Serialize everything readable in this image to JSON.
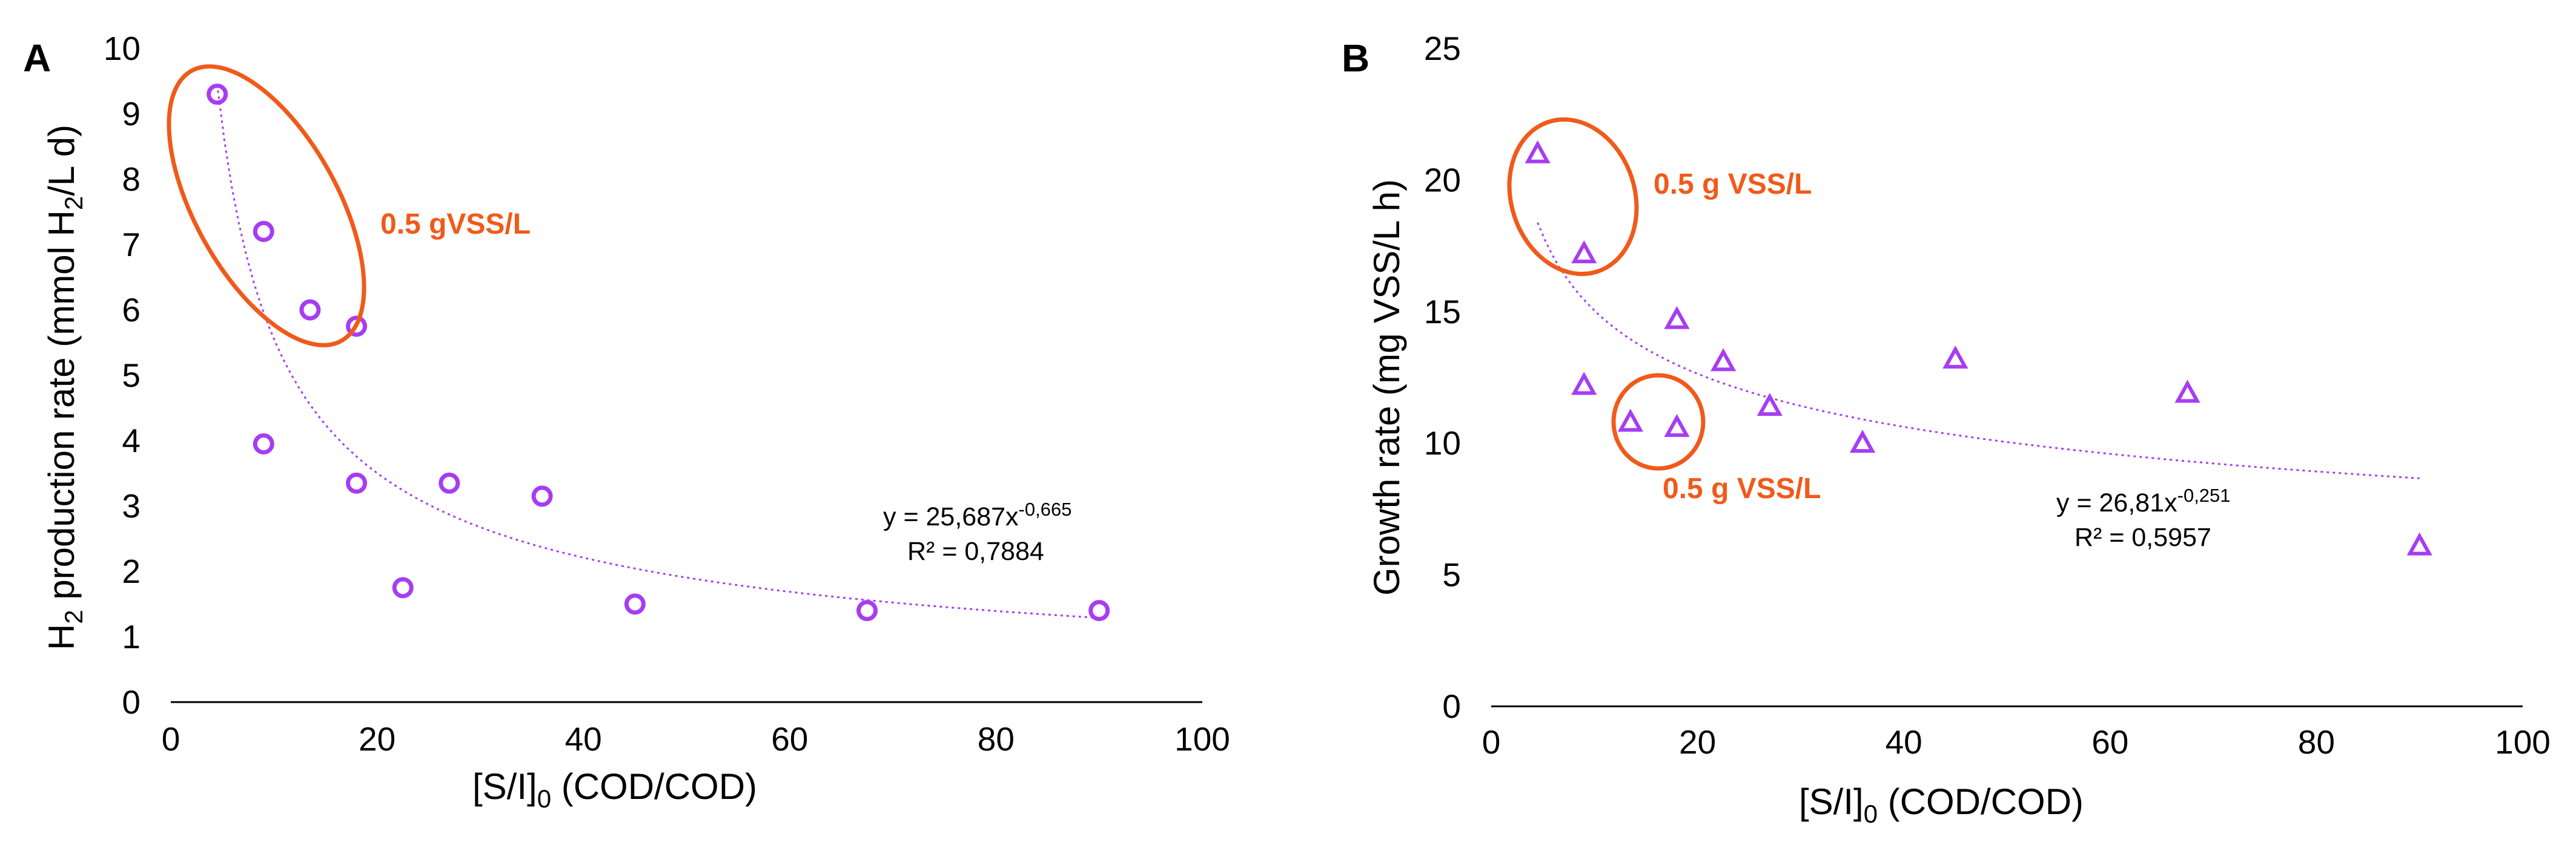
{
  "colors": {
    "marker": "#a63df2",
    "trend": "#a63df2",
    "highlight": "#f05a1a",
    "axis": "#000000"
  },
  "chart_data": [
    {
      "panel": "A",
      "type": "scatter",
      "marker": "circle",
      "xlabel": {
        "main": "[S/I]",
        "sub": "0",
        "rest": " (COD/COD)"
      },
      "ylabel": {
        "pre": "H",
        "sub": "2",
        "mid": " production rate (mmol H",
        "sub2": "2",
        "post": "/L d)"
      },
      "xlim": [
        0,
        100
      ],
      "ylim": [
        0,
        10
      ],
      "xticks": [
        0,
        20,
        40,
        60,
        80,
        100
      ],
      "yticks": [
        0,
        1,
        2,
        3,
        4,
        5,
        6,
        7,
        8,
        9,
        10
      ],
      "points": [
        {
          "x": 4.5,
          "y": 9.3
        },
        {
          "x": 9,
          "y": 7.2
        },
        {
          "x": 13.5,
          "y": 6.0
        },
        {
          "x": 18,
          "y": 5.75
        },
        {
          "x": 9,
          "y": 3.95
        },
        {
          "x": 18,
          "y": 3.35
        },
        {
          "x": 22.5,
          "y": 1.75
        },
        {
          "x": 27,
          "y": 3.35
        },
        {
          "x": 36,
          "y": 3.15
        },
        {
          "x": 45,
          "y": 1.5
        },
        {
          "x": 67.5,
          "y": 1.4
        },
        {
          "x": 90,
          "y": 1.4
        }
      ],
      "trendline": {
        "type": "power",
        "a": 25.687,
        "b": -0.665,
        "x_range": [
          4.5,
          90
        ]
      },
      "equation": {
        "text": "y = 25,687x",
        "exponent": "-0,665",
        "r2": "R² = 0,7884"
      },
      "annotations": [
        {
          "label": "0.5 gVSS/L",
          "circled_points": [
            0,
            1,
            2,
            3
          ]
        }
      ]
    },
    {
      "panel": "B",
      "type": "scatter",
      "marker": "triangle",
      "xlabel": {
        "main": "[S/I]",
        "sub": "0",
        "rest": " (COD/COD)"
      },
      "ylabel": {
        "text": "Growth rate (mg VSS/L h)"
      },
      "xlim": [
        0,
        100
      ],
      "ylim": [
        0,
        25
      ],
      "xticks": [
        0,
        20,
        40,
        60,
        80,
        100
      ],
      "yticks": [
        0,
        5,
        10,
        15,
        20,
        25
      ],
      "points": [
        {
          "x": 4.5,
          "y": 21.0
        },
        {
          "x": 9,
          "y": 17.2
        },
        {
          "x": 9,
          "y": 12.2
        },
        {
          "x": 13.5,
          "y": 10.8
        },
        {
          "x": 18,
          "y": 10.6
        },
        {
          "x": 18,
          "y": 14.7
        },
        {
          "x": 22.5,
          "y": 13.1
        },
        {
          "x": 27,
          "y": 11.4
        },
        {
          "x": 36,
          "y": 10.0
        },
        {
          "x": 45,
          "y": 13.2
        },
        {
          "x": 67.5,
          "y": 11.9
        },
        {
          "x": 90,
          "y": 6.1
        }
      ],
      "trendline": {
        "type": "power",
        "a": 26.81,
        "b": -0.251,
        "x_range": [
          4.5,
          90
        ]
      },
      "equation": {
        "text": "y = 26,81x",
        "exponent": "-0,251",
        "r2": "R² = 0,5957"
      },
      "annotations": [
        {
          "label": "0.5 g VSS/L",
          "circled_points": [
            0,
            1
          ]
        },
        {
          "label": "0.5 g VSS/L",
          "circled_points": [
            3,
            4
          ]
        }
      ]
    }
  ]
}
